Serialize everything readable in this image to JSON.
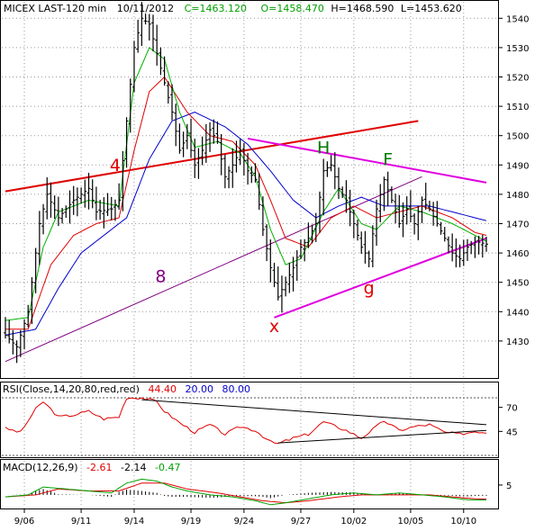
{
  "header": {
    "symbol": "MICEX LAST-120 min",
    "date": "10/11/2012",
    "close": "C=1463.120",
    "open": "O=1458.470",
    "high": "H=1468.590",
    "low": "L=1453.620"
  },
  "rsi_label": {
    "name": "RSI(Close,14,20,80,red,red)",
    "v1": "44.40",
    "v2": "20.00",
    "v3": "80.00"
  },
  "macd_label": {
    "name": "MACD(12,26,9)",
    "v1": "-2.61",
    "v2": "-2.14",
    "v3": "-0.47"
  },
  "colors": {
    "price": "#000000",
    "ma_green": "#00b000",
    "ma_red": "#e00000",
    "ma_blue": "#0000cc",
    "line_red": "#e00000",
    "line_magenta": "#e000e0",
    "line_purple": "#800080",
    "ann_red": "#e00000",
    "ann_green": "#007a00",
    "ann_purple": "#800080"
  },
  "annotations": [
    {
      "id": "4",
      "text": "4",
      "color": "ann_red",
      "xi": 29,
      "y": 1488
    },
    {
      "id": "8",
      "text": "8",
      "color": "ann_purple",
      "xi": 41,
      "y": 1450
    },
    {
      "id": "H",
      "text": "H",
      "color": "ann_green",
      "xi": 84,
      "y": 1494
    },
    {
      "id": "F",
      "text": "F",
      "color": "ann_green",
      "xi": 101,
      "y": 1490
    },
    {
      "id": "x",
      "text": "x",
      "color": "ann_red",
      "xi": 71,
      "y": 1433
    },
    {
      "id": "g",
      "text": "g",
      "color": "ann_red",
      "xi": 96,
      "y": 1446
    }
  ],
  "chart_data": [
    {
      "type": "line",
      "panel": "price",
      "title": "MICEX LAST-120 min",
      "y_ticks": [
        1430,
        1440,
        1450,
        1460,
        1470,
        1480,
        1490,
        1500,
        1510,
        1520,
        1530,
        1540
      ],
      "ylim": [
        1418,
        1545
      ],
      "x_ticks": [
        {
          "label": "9/06",
          "index": 5
        },
        {
          "label": "9/11",
          "index": 20
        },
        {
          "label": "9/14",
          "index": 34
        },
        {
          "label": "9/19",
          "index": 49
        },
        {
          "label": "9/24",
          "index": 63
        },
        {
          "label": "9/27",
          "index": 78
        },
        {
          "label": "10/02",
          "index": 92
        },
        {
          "label": "10/05",
          "index": 107
        },
        {
          "label": "10/10",
          "index": 121
        }
      ],
      "n_bars": 128,
      "close_anchors": [
        [
          0,
          1432
        ],
        [
          3,
          1428
        ],
        [
          6,
          1440
        ],
        [
          9,
          1470
        ],
        [
          11,
          1480
        ],
        [
          14,
          1472
        ],
        [
          18,
          1478
        ],
        [
          22,
          1482
        ],
        [
          24,
          1474
        ],
        [
          28,
          1475
        ],
        [
          30,
          1478
        ],
        [
          32,
          1505
        ],
        [
          34,
          1530
        ],
        [
          36,
          1540
        ],
        [
          38,
          1538
        ],
        [
          40,
          1528
        ],
        [
          44,
          1508
        ],
        [
          46,
          1495
        ],
        [
          48,
          1500
        ],
        [
          50,
          1490
        ],
        [
          52,
          1495
        ],
        [
          54,
          1502
        ],
        [
          56,
          1498
        ],
        [
          58,
          1486
        ],
        [
          60,
          1490
        ],
        [
          62,
          1495
        ],
        [
          64,
          1488
        ],
        [
          66,
          1485
        ],
        [
          68,
          1468
        ],
        [
          70,
          1455
        ],
        [
          72,
          1445
        ],
        [
          74,
          1450
        ],
        [
          76,
          1455
        ],
        [
          78,
          1462
        ],
        [
          80,
          1465
        ],
        [
          82,
          1470
        ],
        [
          84,
          1488
        ],
        [
          86,
          1490
        ],
        [
          88,
          1482
        ],
        [
          90,
          1478
        ],
        [
          92,
          1470
        ],
        [
          94,
          1462
        ],
        [
          96,
          1458
        ],
        [
          98,
          1475
        ],
        [
          100,
          1485
        ],
        [
          102,
          1478
        ],
        [
          104,
          1470
        ],
        [
          106,
          1475
        ],
        [
          108,
          1470
        ],
        [
          110,
          1478
        ],
        [
          112,
          1475
        ],
        [
          114,
          1470
        ],
        [
          116,
          1465
        ],
        [
          118,
          1460
        ],
        [
          120,
          1458
        ],
        [
          122,
          1462
        ],
        [
          124,
          1464
        ],
        [
          127,
          1463
        ]
      ],
      "ma_green_anchors": [
        [
          0,
          1437
        ],
        [
          6,
          1438
        ],
        [
          10,
          1462
        ],
        [
          14,
          1474
        ],
        [
          22,
          1478
        ],
        [
          30,
          1476
        ],
        [
          34,
          1518
        ],
        [
          38,
          1530
        ],
        [
          42,
          1526
        ],
        [
          46,
          1508
        ],
        [
          50,
          1496
        ],
        [
          56,
          1498
        ],
        [
          62,
          1494
        ],
        [
          66,
          1486
        ],
        [
          70,
          1468
        ],
        [
          74,
          1456
        ],
        [
          78,
          1458
        ],
        [
          84,
          1474
        ],
        [
          88,
          1482
        ],
        [
          94,
          1470
        ],
        [
          98,
          1468
        ],
        [
          104,
          1476
        ],
        [
          110,
          1474
        ],
        [
          118,
          1470
        ],
        [
          124,
          1466
        ],
        [
          127,
          1464
        ]
      ],
      "ma_red_anchors": [
        [
          0,
          1434
        ],
        [
          6,
          1434
        ],
        [
          12,
          1456
        ],
        [
          18,
          1466
        ],
        [
          24,
          1470
        ],
        [
          30,
          1472
        ],
        [
          34,
          1495
        ],
        [
          38,
          1515
        ],
        [
          42,
          1520
        ],
        [
          48,
          1508
        ],
        [
          54,
          1500
        ],
        [
          60,
          1498
        ],
        [
          66,
          1490
        ],
        [
          70,
          1478
        ],
        [
          74,
          1465
        ],
        [
          80,
          1462
        ],
        [
          86,
          1472
        ],
        [
          92,
          1476
        ],
        [
          98,
          1472
        ],
        [
          104,
          1474
        ],
        [
          110,
          1476
        ],
        [
          118,
          1472
        ],
        [
          124,
          1467
        ],
        [
          127,
          1466
        ]
      ],
      "ma_blue_anchors": [
        [
          0,
          1432
        ],
        [
          8,
          1434
        ],
        [
          14,
          1448
        ],
        [
          20,
          1460
        ],
        [
          26,
          1466
        ],
        [
          32,
          1472
        ],
        [
          38,
          1492
        ],
        [
          44,
          1505
        ],
        [
          50,
          1508
        ],
        [
          58,
          1503
        ],
        [
          64,
          1497
        ],
        [
          70,
          1488
        ],
        [
          76,
          1478
        ],
        [
          82,
          1472
        ],
        [
          88,
          1476
        ],
        [
          94,
          1479
        ],
        [
          100,
          1476
        ],
        [
          106,
          1476
        ],
        [
          112,
          1476
        ],
        [
          118,
          1474
        ],
        [
          124,
          1472
        ],
        [
          127,
          1471
        ]
      ],
      "trendlines": [
        {
          "name": "red-resistance-line",
          "color": "line_red",
          "width": 2,
          "from": [
            0,
            1481
          ],
          "to": [
            109,
            1505
          ]
        },
        {
          "name": "magenta-upper-line",
          "color": "line_magenta",
          "width": 2,
          "from": [
            64,
            1499
          ],
          "to": [
            127,
            1484
          ]
        },
        {
          "name": "magenta-lower-line",
          "color": "line_magenta",
          "width": 2,
          "from": [
            71,
            1438
          ],
          "to": [
            127,
            1465
          ]
        },
        {
          "name": "purple-support-line",
          "color": "line_purple",
          "width": 1,
          "from": [
            0,
            1423
          ],
          "to": [
            110,
            1486
          ]
        }
      ]
    },
    {
      "type": "line",
      "panel": "rsi",
      "title": "RSI(Close,14,20,80,red,red)",
      "y_ticks": [
        45,
        70
      ],
      "ylim": [
        20,
        80
      ],
      "levels": [
        20,
        80
      ],
      "rsi_anchors": [
        [
          0,
          48
        ],
        [
          4,
          44
        ],
        [
          8,
          68
        ],
        [
          10,
          76
        ],
        [
          14,
          60
        ],
        [
          18,
          62
        ],
        [
          22,
          66
        ],
        [
          26,
          58
        ],
        [
          30,
          60
        ],
        [
          32,
          80
        ],
        [
          36,
          80
        ],
        [
          40,
          76
        ],
        [
          42,
          66
        ],
        [
          46,
          54
        ],
        [
          50,
          44
        ],
        [
          54,
          52
        ],
        [
          58,
          42
        ],
        [
          62,
          50
        ],
        [
          66,
          46
        ],
        [
          70,
          34
        ],
        [
          72,
          32
        ],
        [
          76,
          38
        ],
        [
          80,
          42
        ],
        [
          84,
          55
        ],
        [
          86,
          52
        ],
        [
          90,
          46
        ],
        [
          94,
          38
        ],
        [
          98,
          50
        ],
        [
          100,
          56
        ],
        [
          104,
          46
        ],
        [
          108,
          50
        ],
        [
          112,
          52
        ],
        [
          116,
          44
        ],
        [
          120,
          42
        ],
        [
          124,
          45
        ],
        [
          127,
          44
        ]
      ],
      "trendlines": [
        {
          "name": "rsi-upper-line",
          "from": [
            36,
            78
          ],
          "to": [
            127,
            52
          ]
        },
        {
          "name": "rsi-lower-line",
          "from": [
            72,
            33
          ],
          "to": [
            127,
            46
          ]
        }
      ]
    },
    {
      "type": "line",
      "panel": "macd",
      "title": "MACD(12,26,9)",
      "y_ticks": [
        5
      ],
      "ylim": [
        -6,
        10
      ],
      "macd_anchors": [
        [
          0,
          -1
        ],
        [
          6,
          0
        ],
        [
          10,
          4
        ],
        [
          16,
          3
        ],
        [
          22,
          2
        ],
        [
          28,
          1
        ],
        [
          32,
          6
        ],
        [
          36,
          8
        ],
        [
          40,
          7
        ],
        [
          44,
          4
        ],
        [
          48,
          2
        ],
        [
          54,
          0
        ],
        [
          60,
          -1
        ],
        [
          66,
          -3
        ],
        [
          70,
          -5
        ],
        [
          74,
          -4
        ],
        [
          80,
          -2
        ],
        [
          86,
          0
        ],
        [
          92,
          1
        ],
        [
          98,
          0
        ],
        [
          104,
          1
        ],
        [
          110,
          0
        ],
        [
          116,
          -1
        ],
        [
          122,
          -2.5
        ],
        [
          127,
          -2.61
        ]
      ],
      "signal_anchors": [
        [
          0,
          -1
        ],
        [
          8,
          0
        ],
        [
          14,
          3
        ],
        [
          22,
          2
        ],
        [
          30,
          2
        ],
        [
          36,
          6
        ],
        [
          42,
          6
        ],
        [
          48,
          3
        ],
        [
          56,
          1
        ],
        [
          62,
          -1
        ],
        [
          68,
          -3
        ],
        [
          74,
          -4
        ],
        [
          80,
          -3
        ],
        [
          88,
          -1
        ],
        [
          94,
          0
        ],
        [
          100,
          0
        ],
        [
          106,
          0
        ],
        [
          112,
          0
        ],
        [
          118,
          -1
        ],
        [
          124,
          -2
        ],
        [
          127,
          -2.14
        ]
      ]
    }
  ]
}
